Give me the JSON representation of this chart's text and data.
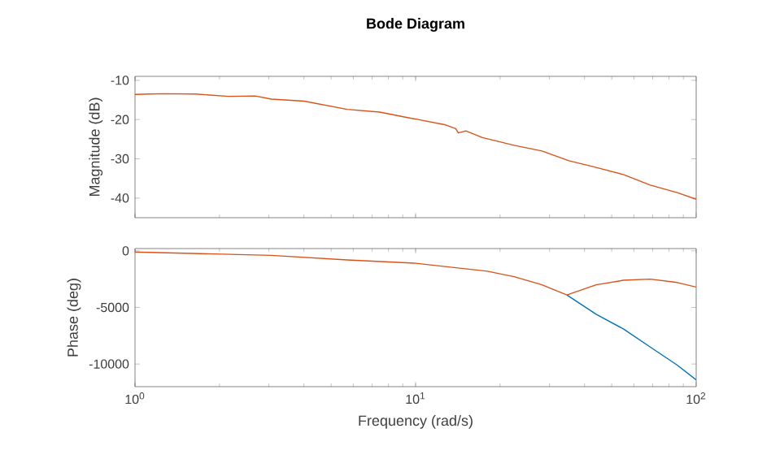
{
  "chart_data": [
    {
      "type": "line",
      "title": "Bode Diagram",
      "ylabel": "Magnitude (dB)",
      "log": "x",
      "tick_labels": "y",
      "line_style": "solid",
      "marker": "none",
      "grid": false,
      "xlim": [
        1,
        100
      ],
      "xticks": [
        {
          "value": 1,
          "label": null
        },
        {
          "value": 10,
          "label": null
        },
        {
          "value": 100,
          "label": null
        }
      ],
      "ylim": [
        -45,
        -9
      ],
      "yticks": [
        -10,
        -20,
        -30,
        -40
      ],
      "series": [
        {
          "color": "#d95319",
          "x": [
            1,
            1.26,
            1.64,
            2.15,
            2.68,
            3.06,
            4.0,
            5.7,
            7.45,
            8.89,
            10.2,
            12.7,
            13.9,
            14.2,
            15.1,
            17.3,
            22.6,
            28.2,
            35.2,
            44,
            55,
            68.6,
            85.6,
            100
          ],
          "values": [
            -13.6,
            -13.4,
            -13.5,
            -14.1,
            -14,
            -14.8,
            -15.3,
            -17.4,
            -18.1,
            -19.2,
            -20,
            -21.3,
            -22.3,
            -23.4,
            -22.9,
            -24.6,
            -26.6,
            -28,
            -30.5,
            -32.2,
            -34,
            -36.7,
            -38.6,
            -40.3
          ]
        }
      ]
    },
    {
      "type": "line",
      "xlabel": "Frequency (rad/s)",
      "ylabel": "Phase (deg)",
      "log": "x",
      "line_style": "solid",
      "marker": "none",
      "grid": false,
      "xlim": [
        1,
        100
      ],
      "xticks": [
        {
          "value": 1,
          "label": "10$^{0}$"
        },
        {
          "value": 10,
          "label": "10$^{1}$"
        },
        {
          "value": 100,
          "label": "10$^{2}$"
        }
      ],
      "ylim": [
        -12000,
        200
      ],
      "yticks": [
        0,
        -5000,
        -10000
      ],
      "series": [
        {
          "color": "#0072bd",
          "x": [
            34.6,
            44,
            55,
            68.6,
            85.6,
            100
          ],
          "values": [
            -3900,
            -5600,
            -6900,
            -8500,
            -10100,
            -11400
          ]
        },
        {
          "color": "#d95319",
          "x": [
            1,
            3.06,
            5.7,
            10,
            18,
            22.6,
            28.2,
            34.6,
            44,
            55,
            68.6,
            85.6,
            100
          ],
          "values": [
            -100,
            -400,
            -800,
            -1100,
            -1800,
            -2300,
            -3000,
            -3900,
            -3000,
            -2600,
            -2500,
            -2800,
            -3200
          ]
        }
      ]
    }
  ]
}
